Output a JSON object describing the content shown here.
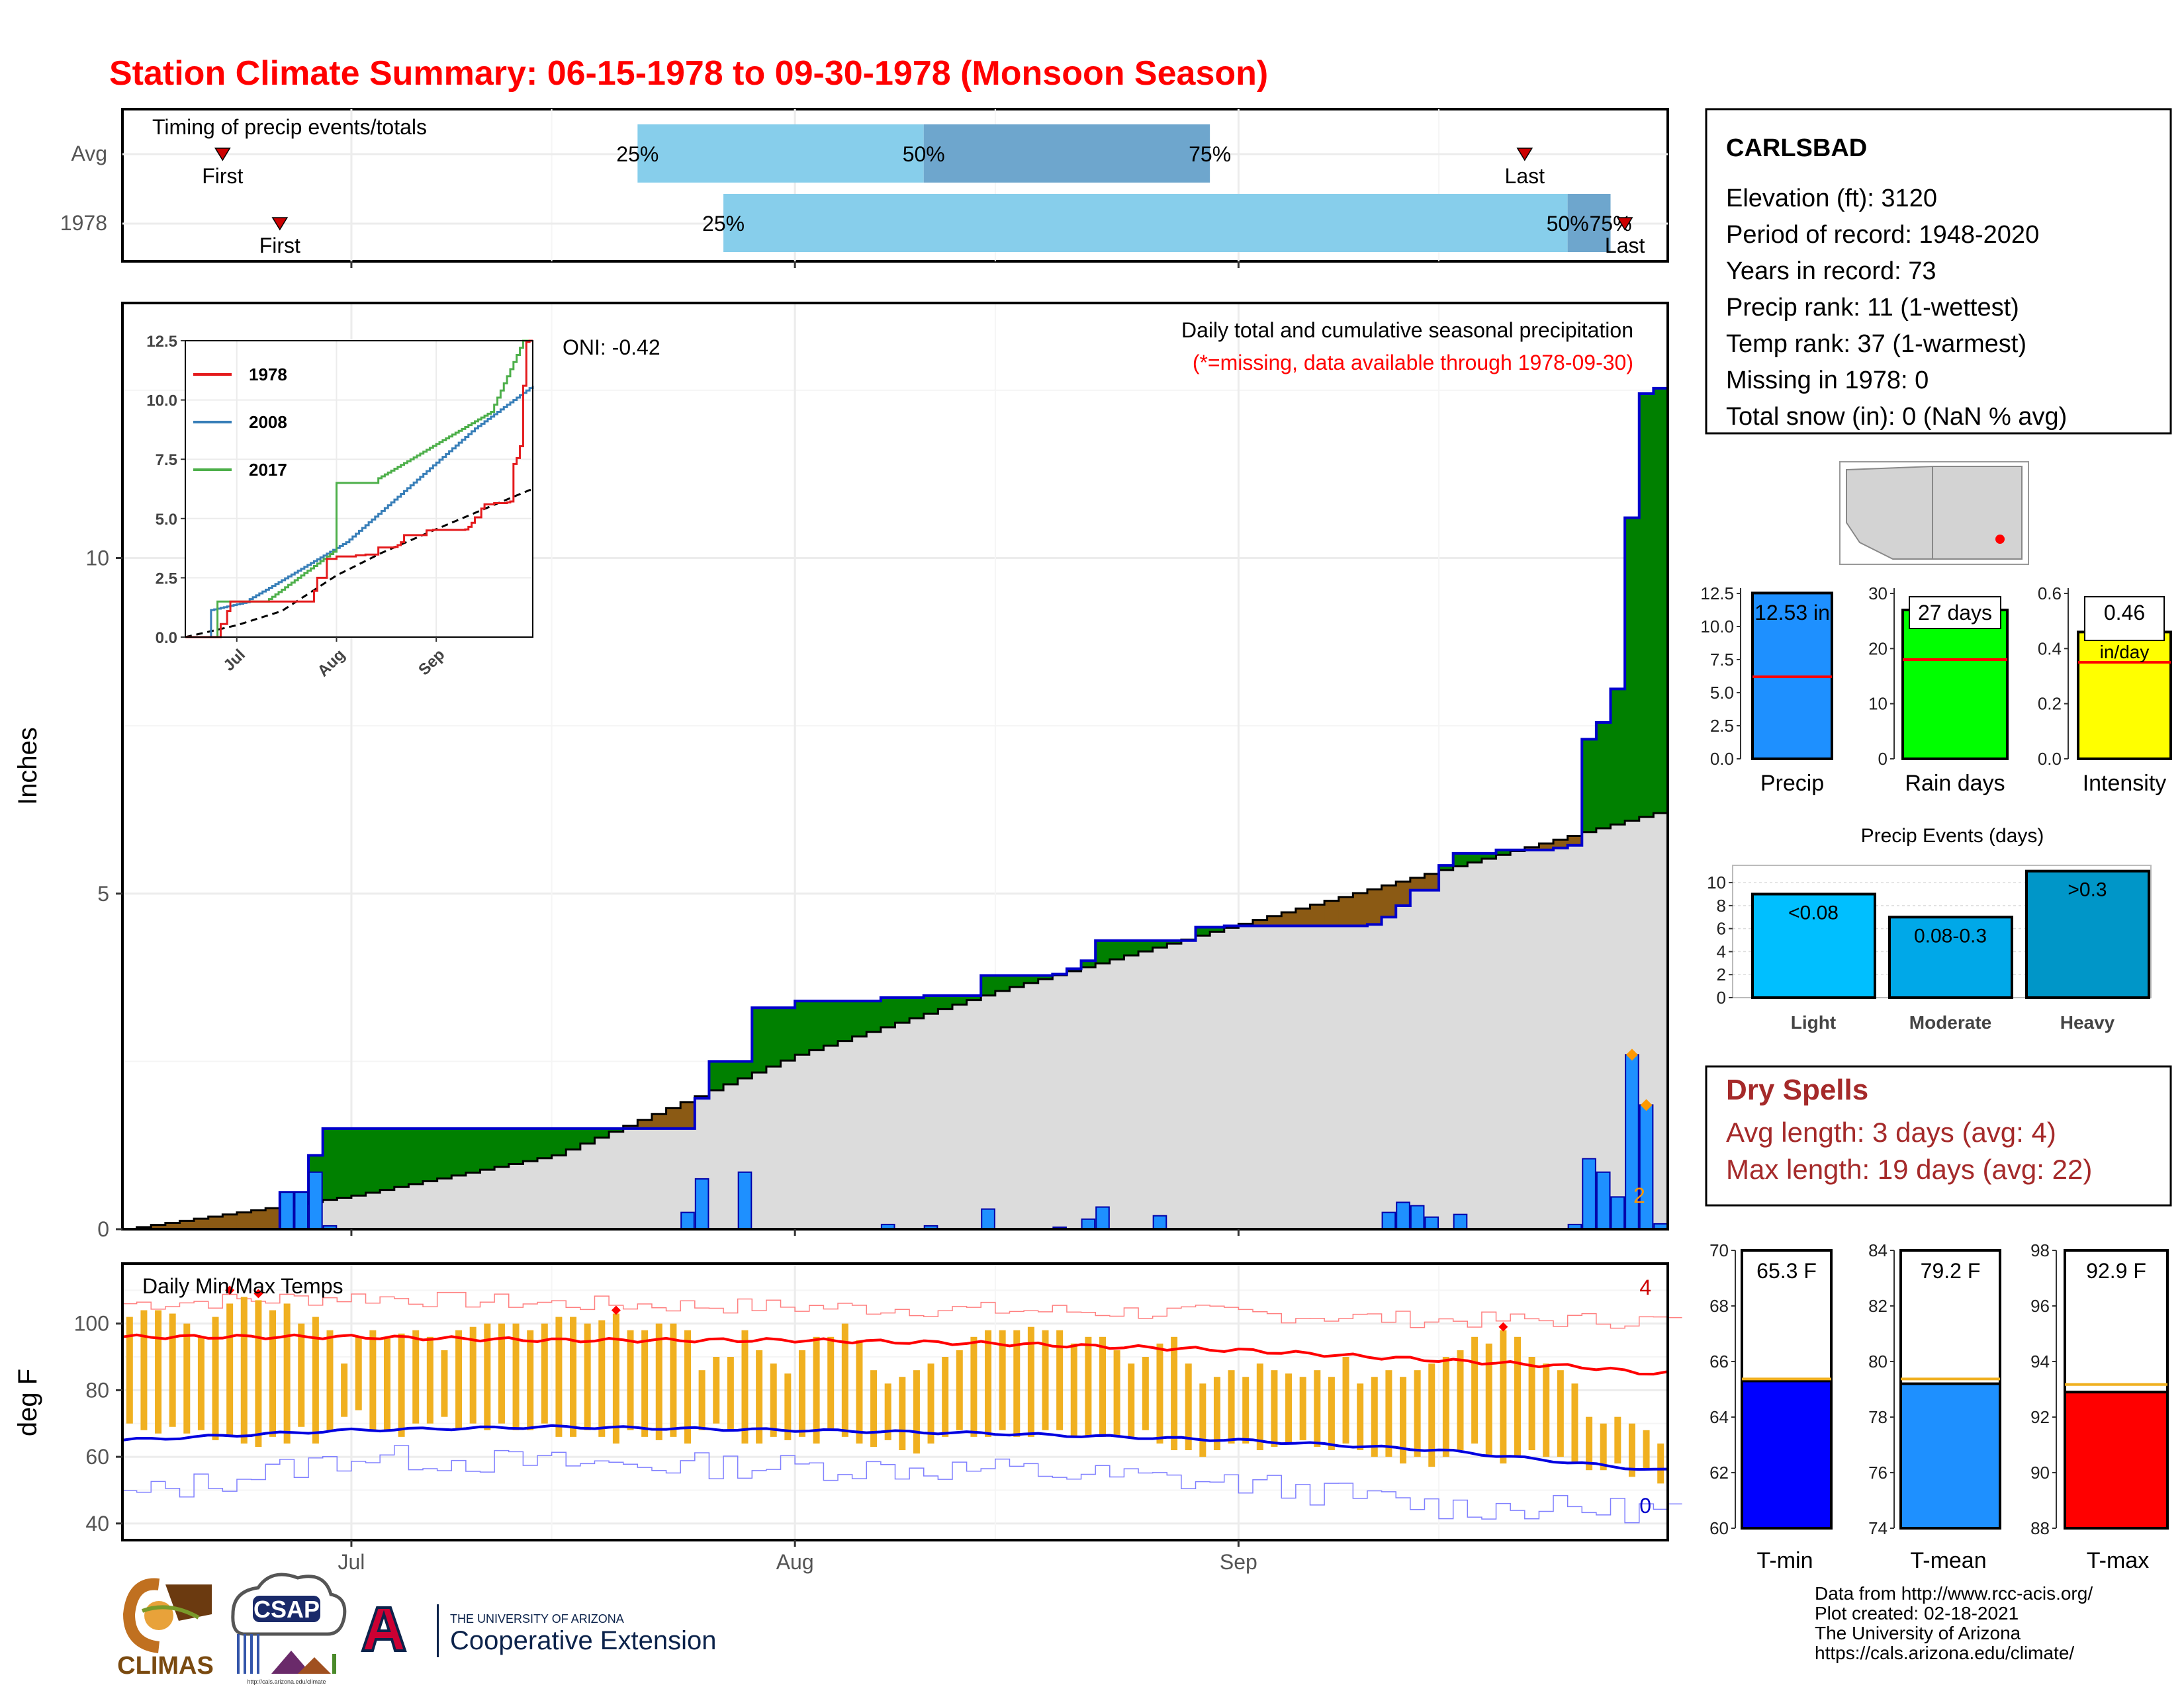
{
  "title": "Station Climate Summary: 06-15-1978 to 09-30-1978 (Monsoon Season)",
  "colors": {
    "title": "#ff0000",
    "precip_area": "#008000",
    "deficit_area": "#8b5a14",
    "avg_area": "#dcdcdc",
    "daily_bar": "#1e90ff",
    "temp_bar": "#f0b020",
    "tmax_line": "#ff0000",
    "tmin_line": "#0000e0",
    "dry_spells": "#a52a2a"
  },
  "timing": {
    "label": "Timing of precip events/totals",
    "rows": [
      "Avg",
      "1978"
    ],
    "first_label": "First",
    "last_label": "Last",
    "pct_labels": [
      "25%",
      "50%",
      "75%"
    ],
    "avg": {
      "first": "06-22",
      "q25": "07-21",
      "q50": "08-10",
      "q75": "08-30",
      "last": "09-21"
    },
    "y1978": {
      "first": "06-26",
      "q25": "07-27",
      "q50": "09-24",
      "q75": "09-27",
      "last": "09-28"
    }
  },
  "months": [
    "Jul",
    "Aug",
    "Sep"
  ],
  "main_panel": {
    "ylabel": "Inches",
    "y_ticks": [
      "0",
      "5",
      "10"
    ],
    "oni": "ONI: -0.42",
    "note1": "Daily total and cumulative seasonal precipitation",
    "note2": "(*=missing, data available through 1978-09-30)",
    "extreme_count": "2"
  },
  "inset": {
    "y_ticks": [
      "0.0",
      "2.5",
      "5.0",
      "7.5",
      "10.0",
      "12.5"
    ],
    "x_ticks": [
      "Jul",
      "Aug",
      "Sep"
    ],
    "legend": [
      {
        "name": "1978",
        "color": "#e41a1c"
      },
      {
        "name": "2008",
        "color": "#377eb8"
      },
      {
        "name": "2017",
        "color": "#4daf4a"
      }
    ]
  },
  "temp_panel": {
    "ylabel": "deg F",
    "label": "Daily Min/Max Temps",
    "y_ticks": [
      "40",
      "60",
      "80",
      "100"
    ],
    "max_count": "4",
    "min_count": "0"
  },
  "station": {
    "name": "CARLSBAD",
    "lines": [
      "Elevation (ft): 3120",
      "Period of record: 1948-2020",
      "Years in record: 73",
      "Precip rank: 11 (1-wettest)",
      "Temp rank: 37 (1-warmest)",
      "Missing in 1978: 0",
      "Total snow (in): 0 (NaN % avg)"
    ]
  },
  "summary_bars": [
    {
      "label": "Precip",
      "value": 12.53,
      "avg": 6.2,
      "text": "12.53 in",
      "ticks": [
        "0.0",
        "2.5",
        "5.0",
        "7.5",
        "10.0",
        "12.5"
      ],
      "max": 12.5,
      "color": "#1e90ff"
    },
    {
      "label": "Rain days",
      "value": 27,
      "avg": 18,
      "text": "27 days",
      "ticks": [
        "0",
        "10",
        "20",
        "30"
      ],
      "max": 30,
      "color": "#00ff00"
    },
    {
      "label": "Intensity",
      "value": 0.46,
      "avg": 0.35,
      "text": "0.46",
      "text2": "in/day",
      "ticks": [
        "0.0",
        "0.2",
        "0.4",
        "0.6"
      ],
      "max": 0.6,
      "color": "#ffff00"
    }
  ],
  "precip_events": {
    "title": "Precip Events (days)",
    "ticks": [
      "0",
      "2",
      "4",
      "6",
      "8",
      "10"
    ],
    "bars": [
      {
        "label": "Light",
        "value": 9,
        "text": "<0.08",
        "color": "#00bfff"
      },
      {
        "label": "Moderate",
        "value": 7,
        "text": "0.08-0.3",
        "color": "#00a8e8"
      },
      {
        "label": "Heavy",
        "value": 11,
        "text": ">0.3",
        "color": "#0096c8"
      }
    ]
  },
  "dry_spells": {
    "title": "Dry Spells",
    "avg": "Avg length: 3 days (avg: 4)",
    "max": "Max length: 19 days (avg: 22)"
  },
  "temp_bars": [
    {
      "label": "T-min",
      "value": 65.3,
      "avg": 65.3,
      "text": "65.3 F",
      "ticks": [
        "60",
        "62",
        "64",
        "66",
        "68",
        "70"
      ],
      "min": 60,
      "max": 70,
      "color": "#0000ff"
    },
    {
      "label": "T-mean",
      "value": 79.2,
      "avg": 79.3,
      "text": "79.2 F",
      "ticks": [
        "74",
        "76",
        "78",
        "80",
        "82",
        "84"
      ],
      "min": 74,
      "max": 84,
      "color": "#1e90ff"
    },
    {
      "label": "T-max",
      "value": 92.9,
      "avg": 93.1,
      "text": "92.9 F",
      "ticks": [
        "88",
        "90",
        "92",
        "94",
        "96",
        "98"
      ],
      "min": 88,
      "max": 98,
      "color": "#ff0000"
    }
  ],
  "footer": {
    "lines": [
      "Data from http://www.rcc-acis.org/",
      "Plot created: 02-18-2021",
      "The University of Arizona",
      "https://cals.arizona.edu/climate/"
    ],
    "logo1": "CLIMAS",
    "logo2": "CSAP",
    "logo2_url": "http://cals.arizona.edu/climate",
    "logo3_line1": "THE UNIVERSITY OF ARIZONA",
    "logo3_line2": "Cooperative Extension"
  },
  "chart_data": [
    {
      "type": "area",
      "title": "Daily total and cumulative seasonal precipitation",
      "ylabel": "Inches",
      "ylim": [
        0,
        13.8
      ],
      "xlim": [
        "06-15",
        "09-30"
      ],
      "cumulative_1978": [
        [
          "06-15",
          0
        ],
        [
          "06-26",
          0.55
        ],
        [
          "06-28",
          1.1
        ],
        [
          "06-29",
          1.5
        ],
        [
          "07-24",
          1.5
        ],
        [
          "07-25",
          1.95
        ],
        [
          "07-26",
          2.5
        ],
        [
          "07-29",
          3.3
        ],
        [
          "08-01",
          3.4
        ],
        [
          "08-07",
          3.45
        ],
        [
          "08-10",
          3.48
        ],
        [
          "08-14",
          3.78
        ],
        [
          "08-19",
          3.8
        ],
        [
          "08-20",
          3.88
        ],
        [
          "08-21",
          4.0
        ],
        [
          "08-22",
          4.3
        ],
        [
          "08-29",
          4.5
        ],
        [
          "08-31",
          4.52
        ],
        [
          "09-10",
          4.54
        ],
        [
          "09-11",
          4.65
        ],
        [
          "09-12",
          4.82
        ],
        [
          "09-13",
          5.05
        ],
        [
          "09-15",
          5.42
        ],
        [
          "09-16",
          5.6
        ],
        [
          "09-19",
          5.65
        ],
        [
          "09-20",
          5.65
        ],
        [
          "09-23",
          5.68
        ],
        [
          "09-24",
          5.72
        ],
        [
          "09-25",
          7.3
        ],
        [
          "09-26",
          7.55
        ],
        [
          "09-27",
          8.05
        ],
        [
          "09-28",
          10.6
        ],
        [
          "09-29",
          12.45
        ],
        [
          "09-30",
          12.53
        ]
      ],
      "average_cumulative": [
        [
          "06-15",
          0
        ],
        [
          "07-01",
          0.5
        ],
        [
          "07-15",
          1.1
        ],
        [
          "08-01",
          2.6
        ],
        [
          "08-15",
          3.55
        ],
        [
          "09-01",
          4.55
        ],
        [
          "09-15",
          5.35
        ],
        [
          "09-30",
          6.2
        ]
      ],
      "daily_1978": [
        [
          "06-26",
          0.55
        ],
        [
          "06-27",
          0.55
        ],
        [
          "06-28",
          0.85
        ],
        [
          "06-29",
          0.05
        ],
        [
          "07-24",
          0.25
        ],
        [
          "07-25",
          0.75
        ],
        [
          "07-28",
          0.85
        ],
        [
          "08-07",
          0.07
        ],
        [
          "08-10",
          0.05
        ],
        [
          "08-14",
          0.3
        ],
        [
          "08-19",
          0.03
        ],
        [
          "08-21",
          0.15
        ],
        [
          "08-22",
          0.33
        ],
        [
          "08-26",
          0.2
        ],
        [
          "09-11",
          0.25
        ],
        [
          "09-12",
          0.4
        ],
        [
          "09-13",
          0.35
        ],
        [
          "09-14",
          0.18
        ],
        [
          "09-16",
          0.22
        ],
        [
          "09-24",
          0.07
        ],
        [
          "09-25",
          1.05
        ],
        [
          "09-26",
          0.85
        ],
        [
          "09-27",
          0.48
        ],
        [
          "09-28",
          2.6
        ],
        [
          "09-29",
          1.85
        ],
        [
          "09-30",
          0.08
        ]
      ]
    },
    {
      "type": "line",
      "title": "Daily Min/Max Temps",
      "ylabel": "deg F",
      "ylim": [
        35,
        118
      ],
      "avg_tmax": [
        [
          "06-15",
          96
        ],
        [
          "07-01",
          96
        ],
        [
          "07-15",
          95
        ],
        [
          "08-01",
          95
        ],
        [
          "08-15",
          94
        ],
        [
          "09-01",
          92
        ],
        [
          "09-15",
          89
        ],
        [
          "09-25",
          87
        ],
        [
          "09-30",
          85
        ]
      ],
      "avg_tmin": [
        [
          "06-15",
          65
        ],
        [
          "07-01",
          68
        ],
        [
          "07-15",
          69
        ],
        [
          "08-01",
          68
        ],
        [
          "08-15",
          67
        ],
        [
          "09-01",
          65
        ],
        [
          "09-15",
          62
        ],
        [
          "09-25",
          58
        ],
        [
          "09-30",
          56
        ]
      ],
      "record_max": [
        [
          "06-15",
          106
        ],
        [
          "07-01",
          108
        ],
        [
          "07-15",
          106
        ],
        [
          "08-01",
          105
        ],
        [
          "08-15",
          104
        ],
        [
          "09-01",
          103
        ],
        [
          "09-15",
          101
        ],
        [
          "09-30",
          101
        ]
      ],
      "record_min": [
        [
          "06-15",
          48
        ],
        [
          "07-01",
          60
        ],
        [
          "07-15",
          58
        ],
        [
          "08-01",
          57
        ],
        [
          "08-15",
          56
        ],
        [
          "09-01",
          52
        ],
        [
          "09-15",
          45
        ],
        [
          "09-30",
          44
        ]
      ],
      "daily_range_1978": [
        [
          "06-15",
          70,
          102
        ],
        [
          "06-16",
          68,
          104
        ],
        [
          "06-17",
          67,
          104
        ],
        [
          "06-18",
          69,
          103
        ],
        [
          "06-19",
          67,
          100
        ],
        [
          "06-20",
          68,
          96
        ],
        [
          "06-21",
          65,
          102
        ],
        [
          "06-22",
          66,
          106
        ],
        [
          "06-23",
          64,
          108
        ],
        [
          "06-24",
          63,
          107
        ],
        [
          "06-25",
          66,
          104
        ],
        [
          "06-26",
          64,
          106
        ],
        [
          "06-27",
          69,
          100
        ],
        [
          "06-28",
          64,
          102
        ],
        [
          "06-29",
          68,
          98
        ],
        [
          "06-30",
          72,
          88
        ],
        [
          "07-01",
          74,
          96
        ],
        [
          "07-02",
          68,
          98
        ],
        [
          "07-03",
          68,
          96
        ],
        [
          "07-04",
          66,
          97
        ],
        [
          "07-05",
          70,
          98
        ],
        [
          "07-06",
          70,
          96
        ],
        [
          "07-07",
          72,
          92
        ],
        [
          "07-08",
          68,
          98
        ],
        [
          "07-09",
          70,
          99
        ],
        [
          "07-10",
          68,
          100
        ],
        [
          "07-11",
          70,
          100
        ],
        [
          "07-12",
          68,
          100
        ],
        [
          "07-13",
          68,
          98
        ],
        [
          "07-14",
          70,
          100
        ],
        [
          "07-15",
          66,
          102
        ],
        [
          "07-16",
          66,
          102
        ],
        [
          "07-17",
          68,
          100
        ],
        [
          "07-18",
          66,
          101
        ],
        [
          "07-19",
          64,
          103
        ],
        [
          "07-20",
          68,
          98
        ],
        [
          "07-21",
          66,
          98
        ],
        [
          "07-22",
          65,
          100
        ],
        [
          "07-23",
          66,
          100
        ],
        [
          "07-24",
          64,
          98
        ],
        [
          "07-25",
          68,
          86
        ],
        [
          "07-26",
          70,
          90
        ],
        [
          "07-27",
          68,
          90
        ],
        [
          "07-28",
          64,
          98
        ],
        [
          "07-29",
          64,
          92
        ],
        [
          "07-30",
          66,
          88
        ],
        [
          "07-31",
          65,
          85
        ],
        [
          "08-01",
          66,
          92
        ],
        [
          "08-02",
          64,
          96
        ],
        [
          "08-03",
          68,
          96
        ],
        [
          "08-04",
          66,
          100
        ],
        [
          "08-05",
          64,
          95
        ],
        [
          "08-06",
          63,
          86
        ],
        [
          "08-07",
          65,
          82
        ],
        [
          "08-08",
          62,
          84
        ],
        [
          "08-09",
          61,
          86
        ],
        [
          "08-10",
          64,
          88
        ],
        [
          "08-11",
          66,
          90
        ],
        [
          "08-12",
          68,
          92
        ],
        [
          "08-13",
          66,
          96
        ],
        [
          "08-14",
          66,
          98
        ],
        [
          "08-15",
          68,
          98
        ],
        [
          "08-16",
          66,
          98
        ],
        [
          "08-17",
          66,
          99
        ],
        [
          "08-18",
          68,
          98
        ],
        [
          "08-19",
          68,
          98
        ],
        [
          "08-20",
          66,
          94
        ],
        [
          "08-21",
          66,
          96
        ],
        [
          "08-22",
          66,
          96
        ],
        [
          "08-23",
          66,
          92
        ],
        [
          "08-24",
          66,
          88
        ],
        [
          "08-25",
          68,
          90
        ],
        [
          "08-26",
          64,
          94
        ],
        [
          "08-27",
          62,
          96
        ],
        [
          "08-28",
          62,
          88
        ],
        [
          "08-29",
          60,
          82
        ],
        [
          "08-30",
          62,
          84
        ],
        [
          "08-31",
          64,
          86
        ],
        [
          "09-01",
          64,
          84
        ],
        [
          "09-02",
          62,
          88
        ],
        [
          "09-03",
          63,
          86
        ],
        [
          "09-04",
          64,
          85
        ],
        [
          "09-05",
          65,
          84
        ],
        [
          "09-06",
          63,
          86
        ],
        [
          "09-07",
          62,
          84
        ],
        [
          "09-08",
          64,
          90
        ],
        [
          "09-09",
          62,
          82
        ],
        [
          "09-10",
          60,
          84
        ],
        [
          "09-11",
          60,
          86
        ],
        [
          "09-12",
          58,
          84
        ],
        [
          "09-13",
          60,
          86
        ],
        [
          "09-14",
          57,
          88
        ],
        [
          "09-15",
          60,
          90
        ],
        [
          "09-16",
          62,
          92
        ],
        [
          "09-17",
          64,
          96
        ],
        [
          "09-18",
          60,
          94
        ],
        [
          "09-19",
          58,
          98
        ],
        [
          "09-20",
          60,
          96
        ],
        [
          "09-21",
          62,
          90
        ],
        [
          "09-22",
          60,
          88
        ],
        [
          "09-23",
          60,
          86
        ],
        [
          "09-24",
          58,
          82
        ],
        [
          "09-25",
          56,
          72
        ],
        [
          "09-26",
          56,
          70
        ],
        [
          "09-27",
          58,
          72
        ],
        [
          "09-28",
          54,
          70
        ],
        [
          "09-29",
          56,
          68
        ],
        [
          "09-30",
          52,
          64
        ]
      ]
    }
  ]
}
